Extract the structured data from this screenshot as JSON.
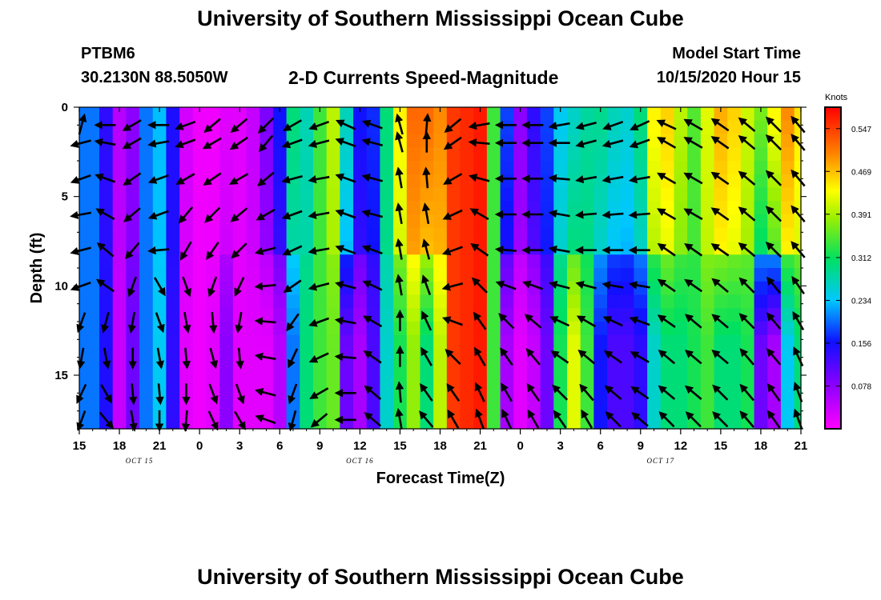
{
  "header": {
    "title": "University of Southern Mississippi Ocean Cube",
    "station": "PTBM6",
    "coordinates": "30.2130N 88.5050W",
    "subtitle": "2-D Currents Speed-Magnitude",
    "model_start_label": "Model Start Time",
    "model_start_value": "10/15/2020 Hour 15"
  },
  "footer": {
    "title": "University of Southern Mississippi Ocean Cube"
  },
  "chart_data": {
    "type": "heatmap",
    "title": "2-D Currents Speed-Magnitude",
    "xlabel": "Forecast Time(Z)",
    "ylabel": "Depth (ft)",
    "x_range_hours": [
      0,
      54
    ],
    "x_ticks": [
      "15",
      "18",
      "21",
      "0",
      "3",
      "6",
      "9",
      "12",
      "15",
      "18",
      "21",
      "0",
      "3",
      "6",
      "9",
      "12",
      "15",
      "18",
      "21"
    ],
    "date_labels": [
      {
        "label": "OCT 15",
        "at_hour": 4.5
      },
      {
        "label": "OCT 16",
        "at_hour": 21
      },
      {
        "label": "OCT 17",
        "at_hour": 43.5
      }
    ],
    "y_range": [
      0,
      18
    ],
    "y_ticks": [
      0,
      5,
      10,
      15
    ],
    "colorbar": {
      "unit": "Knots",
      "range": [
        0.0,
        0.586
      ],
      "ticks": [
        "0.547",
        "0.469",
        "0.391",
        "0.312",
        "0.234",
        "0.156",
        "0.078"
      ]
    },
    "speed_profile_hours": [
      0,
      1,
      2,
      3,
      4,
      5,
      6,
      7,
      8,
      9,
      10,
      11,
      12,
      13,
      14,
      15,
      16,
      17,
      18,
      19,
      20,
      21,
      22,
      23,
      24,
      25,
      26,
      27,
      28,
      29,
      30,
      31,
      32,
      33,
      34,
      35,
      36,
      37,
      38,
      39,
      40,
      41,
      42,
      43,
      44,
      45,
      46,
      47,
      48,
      49,
      50,
      51,
      52,
      53,
      54
    ],
    "speed_surface": [
      0.2,
      0.2,
      0.14,
      0.05,
      0.08,
      0.2,
      0.23,
      0.15,
      0.03,
      0.01,
      0.01,
      0.02,
      0.02,
      0.04,
      0.09,
      0.16,
      0.3,
      0.27,
      0.34,
      0.4,
      0.27,
      0.16,
      0.17,
      0.3,
      0.44,
      0.52,
      0.52,
      0.5,
      0.55,
      0.56,
      0.57,
      0.34,
      0.18,
      0.08,
      0.14,
      0.18,
      0.24,
      0.26,
      0.28,
      0.29,
      0.27,
      0.26,
      0.3,
      0.44,
      0.46,
      0.4,
      0.35,
      0.42,
      0.48,
      0.46,
      0.41,
      0.37,
      0.44,
      0.5,
      0.45
    ],
    "speed_bottom": [
      0.2,
      0.2,
      0.15,
      0.04,
      0.1,
      0.2,
      0.24,
      0.14,
      0.02,
      0.01,
      0.02,
      0.08,
      0.02,
      0.02,
      0.02,
      0.05,
      0.2,
      0.3,
      0.34,
      0.36,
      0.1,
      0.06,
      0.12,
      0.26,
      0.32,
      0.38,
      0.3,
      0.4,
      0.55,
      0.56,
      0.57,
      0.34,
      0.06,
      0.02,
      0.04,
      0.1,
      0.32,
      0.42,
      0.34,
      0.16,
      0.12,
      0.12,
      0.14,
      0.26,
      0.3,
      0.3,
      0.32,
      0.34,
      0.3,
      0.3,
      0.32,
      0.1,
      0.06,
      0.24,
      0.3
    ],
    "bottom_layer_start_depth": 8.5,
    "vector_columns_hours": [
      0,
      2,
      4,
      6,
      8,
      10,
      12,
      14,
      16,
      18,
      20,
      22,
      24,
      26,
      28,
      30,
      32,
      34,
      36,
      38,
      40,
      42,
      44,
      46,
      48,
      50,
      52,
      54
    ],
    "vector_depths_ft": [
      1,
      2,
      4,
      6,
      8,
      10,
      12,
      14,
      16,
      17.5
    ],
    "vector_angles_deg": [
      [
        75,
        195,
        200,
        190,
        195,
        200,
        250,
        260,
        245,
        250
      ],
      [
        180,
        170,
        160,
        150,
        140,
        145,
        255,
        280,
        300,
        310
      ],
      [
        210,
        210,
        215,
        220,
        230,
        250,
        260,
        270,
        275,
        280
      ],
      [
        180,
        190,
        200,
        200,
        185,
        300,
        290,
        280,
        275,
        270
      ],
      [
        200,
        200,
        210,
        230,
        240,
        290,
        280,
        275,
        270,
        265
      ],
      [
        220,
        210,
        215,
        225,
        235,
        250,
        275,
        285,
        290,
        295
      ],
      [
        220,
        215,
        210,
        220,
        225,
        245,
        260,
        275,
        290,
        300
      ],
      [
        225,
        230,
        220,
        210,
        195,
        185,
        175,
        170,
        165,
        160
      ],
      [
        210,
        200,
        195,
        200,
        205,
        215,
        235,
        245,
        250,
        255
      ],
      [
        200,
        195,
        190,
        190,
        190,
        195,
        200,
        205,
        210,
        220
      ],
      [
        155,
        160,
        160,
        160,
        160,
        165,
        170,
        175,
        180,
        180
      ],
      [
        160,
        165,
        165,
        165,
        160,
        155,
        150,
        145,
        140,
        140
      ],
      [
        105,
        105,
        100,
        100,
        100,
        100,
        90,
        90,
        95,
        100
      ],
      [
        85,
        90,
        95,
        100,
        105,
        110,
        115,
        120,
        125,
        130
      ],
      [
        220,
        215,
        210,
        205,
        200,
        195,
        160,
        135,
        125,
        120
      ],
      [
        190,
        175,
        165,
        150,
        145,
        135,
        125,
        120,
        115,
        110
      ],
      [
        180,
        180,
        180,
        180,
        175,
        160,
        135,
        125,
        120,
        115
      ],
      [
        180,
        180,
        180,
        180,
        180,
        160,
        140,
        130,
        125,
        120
      ],
      [
        190,
        180,
        175,
        170,
        170,
        165,
        155,
        145,
        135,
        125
      ],
      [
        195,
        195,
        190,
        185,
        180,
        165,
        150,
        140,
        130,
        120
      ],
      [
        200,
        195,
        190,
        185,
        180,
        170,
        155,
        145,
        140,
        135
      ],
      [
        205,
        200,
        190,
        185,
        180,
        170,
        160,
        150,
        145,
        140
      ],
      [
        155,
        150,
        150,
        150,
        145,
        145,
        145,
        140,
        140,
        135
      ],
      [
        150,
        150,
        150,
        150,
        145,
        145,
        140,
        140,
        140,
        135
      ],
      [
        145,
        145,
        145,
        145,
        145,
        140,
        140,
        140,
        135,
        135
      ],
      [
        140,
        140,
        140,
        140,
        140,
        135,
        135,
        130,
        130,
        130
      ],
      [
        135,
        135,
        135,
        135,
        135,
        130,
        130,
        130,
        125,
        125
      ],
      [
        130,
        130,
        130,
        130,
        130,
        125,
        120,
        115,
        110,
        110
      ]
    ]
  }
}
